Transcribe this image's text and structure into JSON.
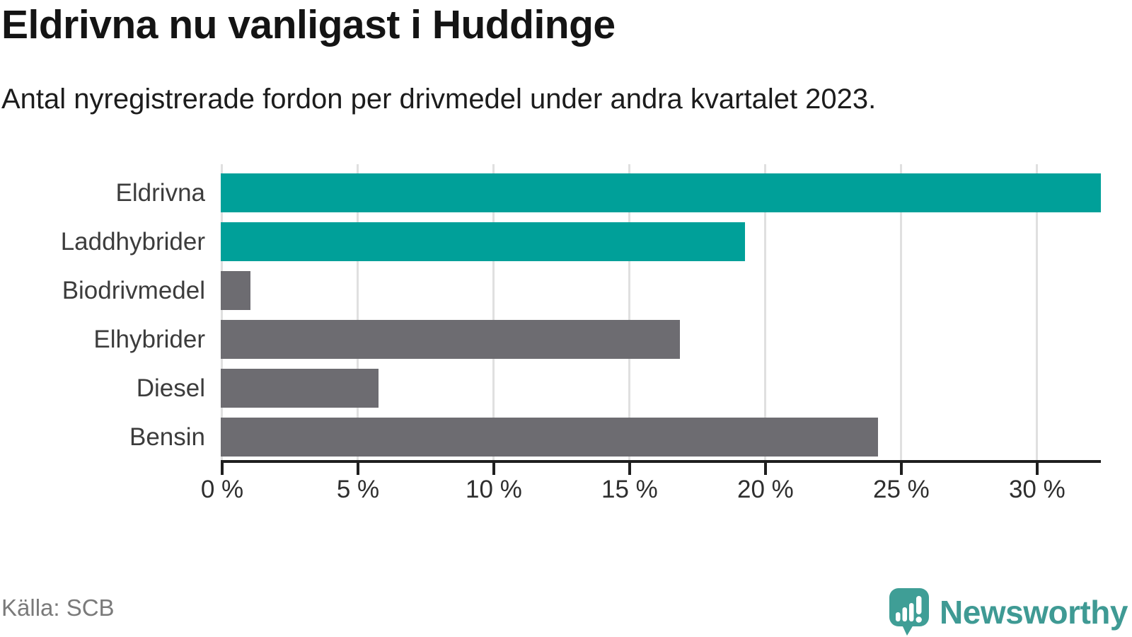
{
  "header": {
    "title": "Eldrivna nu vanligast i Huddinge",
    "subtitle": "Antal nyregistrerade fordon per drivmedel under andra kvartalet 2023."
  },
  "footer": {
    "source": "Källa: SCB",
    "brand": "Newsworthy"
  },
  "colors": {
    "highlight": "#00a099",
    "default": "#6d6c71",
    "axis": "#1f1f1f",
    "grid": "#e0e0e0",
    "brand_teal": "#3f9a94",
    "logo_icon": "#3f9e96"
  },
  "chart_data": {
    "type": "bar",
    "orientation": "horizontal",
    "title": "Eldrivna nu vanligast i Huddinge",
    "subtitle": "Antal nyregistrerade fordon per drivmedel under andra kvartalet 2023.",
    "categories": [
      "Eldrivna",
      "Laddhybrider",
      "Biodrivmedel",
      "Elhybrider",
      "Diesel",
      "Bensin"
    ],
    "values": [
      32.4,
      19.3,
      1.1,
      16.9,
      5.8,
      24.2
    ],
    "bar_colors": [
      "#00a099",
      "#00a099",
      "#6d6c71",
      "#6d6c71",
      "#6d6c71",
      "#6d6c71"
    ],
    "unit": "%",
    "xlabel": "",
    "ylabel": "",
    "xlim": [
      0,
      32.4
    ],
    "xticks": [
      0,
      5,
      10,
      15,
      20,
      25,
      30
    ],
    "xtick_labels": [
      "0 %",
      "5 %",
      "10 %",
      "15 %",
      "20 %",
      "25 %",
      "30 %"
    ],
    "grid": true,
    "legend": false
  }
}
